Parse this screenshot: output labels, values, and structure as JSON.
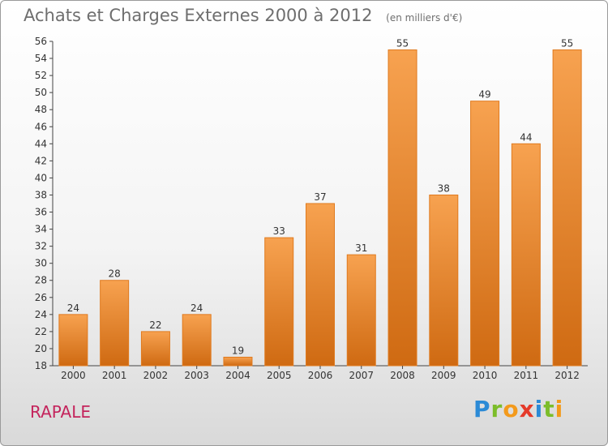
{
  "chart_data": {
    "type": "bar",
    "title": "Achats et Charges Externes 2000 à 2012",
    "unit_note": "(en milliers d'€)",
    "categories": [
      "2000",
      "2001",
      "2002",
      "2003",
      "2004",
      "2005",
      "2006",
      "2007",
      "2008",
      "2009",
      "2010",
      "2011",
      "2012"
    ],
    "values": [
      24,
      28,
      22,
      24,
      19,
      33,
      37,
      31,
      55,
      38,
      49,
      44,
      55
    ],
    "ylim": [
      18,
      56
    ],
    "ytick_step": 2,
    "grid": false,
    "colors": {
      "bar_top": "#f7a250",
      "bar_bottom": "#cf6a12",
      "bar_edge": "#e07a1e"
    }
  },
  "place_name": "RAPALE",
  "logo": {
    "letters": [
      "P",
      "r",
      "o",
      "x",
      "i",
      "t",
      "i"
    ]
  }
}
